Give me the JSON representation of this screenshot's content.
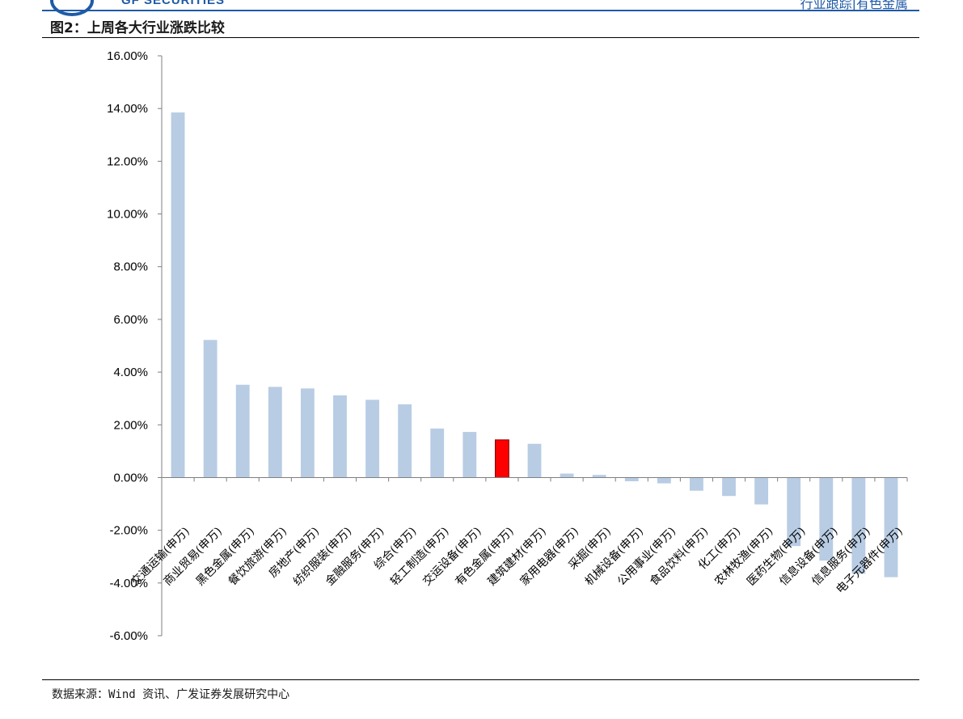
{
  "header": {
    "logo_text": "GF SECURITIES",
    "right_text": "行业跟踪|有色金属"
  },
  "figure_title": "图2：上周各大行业涨跌比较",
  "source": "数据来源：Wind 资讯、广发证券发展研究中心",
  "chart_data": {
    "type": "bar",
    "title": "",
    "xlabel": "",
    "ylabel": "",
    "ylim": [
      -6,
      16
    ],
    "y_ticks": [
      16,
      14,
      12,
      10,
      8,
      6,
      4,
      2,
      0,
      -2,
      -4,
      -6
    ],
    "y_tick_labels": [
      "16.00%",
      "14.00%",
      "12.00%",
      "10.00%",
      "8.00%",
      "6.00%",
      "4.00%",
      "2.00%",
      "0.00%",
      "-2.00%",
      "-4.00%",
      "-6.00%"
    ],
    "categories": [
      "交通运输(申万)",
      "商业贸易(申万)",
      "黑色金属(申万)",
      "餐饮旅游(申万)",
      "房地产(申万)",
      "纺织服装(申万)",
      "金融服务(申万)",
      "综合(申万)",
      "轻工制造(申万)",
      "交运设备(申万)",
      "有色金属(申万)",
      "建筑建材(申万)",
      "家用电器(申万)",
      "采掘(申万)",
      "机械设备(申万)",
      "公用事业(申万)",
      "食品饮料(申万)",
      "化工(申万)",
      "农林牧渔(申万)",
      "医药生物(申万)",
      "信息设备(申万)",
      "信息服务(申万)",
      "电子元器件(申万)"
    ],
    "values": [
      13.85,
      5.22,
      3.52,
      3.44,
      3.38,
      3.12,
      2.95,
      2.78,
      1.86,
      1.73,
      1.43,
      1.28,
      0.15,
      0.1,
      -0.14,
      -0.22,
      -0.5,
      -0.7,
      -1.02,
      -2.6,
      -3.15,
      -3.65,
      -3.78
    ],
    "highlight_index": 10,
    "colors": {
      "bar": "#b8cce4",
      "highlight": "#ff0000",
      "highlight_edge": "#7f0000",
      "axis": "#7f7f7f"
    },
    "grid": false,
    "legend": "none"
  }
}
